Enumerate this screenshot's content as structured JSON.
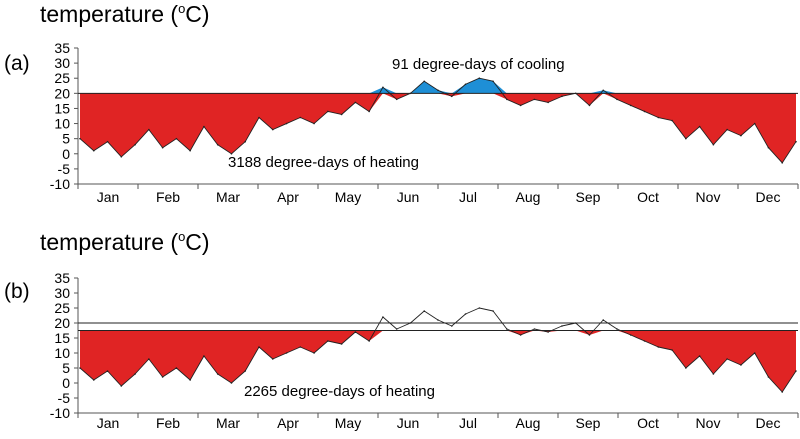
{
  "colors": {
    "heating": "#e02424",
    "cooling": "#1e8fd6",
    "line": "#222222",
    "axis": "#555555"
  },
  "chart_data": [
    {
      "type": "area",
      "panel_label": "(a)",
      "title_main": "temperature (",
      "title_deg": "o",
      "title_unit": "C)",
      "xlabel": "",
      "ylabel": "temperature (°C)",
      "ylim": [
        -10,
        35
      ],
      "yticks": [
        "35",
        "30",
        "25",
        "20",
        "15",
        "10",
        "5",
        "0",
        "-5",
        "-10"
      ],
      "categories": [
        "Jan",
        "Feb",
        "Mar",
        "Apr",
        "May",
        "Jun",
        "Jul",
        "Aug",
        "Sep",
        "Oct",
        "Nov",
        "Dec"
      ],
      "grid": false,
      "heating_base": 20,
      "cooling_base": 20,
      "annotations": [
        "91 degree-days of cooling",
        "3188 degree-days of heating"
      ],
      "series": [
        {
          "x": [
            "Jan 1",
            "Jan 8",
            "Jan 15",
            "Jan 22",
            "Jan 29",
            "Feb 5",
            "Feb 12",
            "Feb 19",
            "Feb 26",
            "Mar 5",
            "Mar 12",
            "Mar 19",
            "Mar 26",
            "Apr 2",
            "Apr 9",
            "Apr 16",
            "Apr 23",
            "Apr 30",
            "May 7",
            "May 14",
            "May 21",
            "May 28",
            "Jun 4",
            "Jun 11",
            "Jun 18",
            "Jun 25",
            "Jul 2",
            "Jul 9",
            "Jul 16",
            "Jul 23",
            "Jul 30",
            "Aug 6",
            "Aug 13",
            "Aug 20",
            "Aug 27",
            "Sep 3",
            "Sep 10",
            "Sep 17",
            "Sep 24",
            "Oct 1",
            "Oct 8",
            "Oct 15",
            "Oct 22",
            "Oct 29",
            "Nov 5",
            "Nov 12",
            "Nov 19",
            "Nov 26",
            "Dec 3",
            "Dec 10",
            "Dec 17",
            "Dec 24",
            "Dec 31"
          ],
          "values": [
            5,
            1,
            4,
            -1,
            3,
            8,
            2,
            5,
            1,
            9,
            3,
            0,
            4,
            12,
            8,
            10,
            12,
            10,
            14,
            13,
            17,
            14,
            22,
            18,
            20,
            24,
            21,
            19,
            23,
            25,
            24,
            18,
            16,
            18,
            17,
            19,
            20,
            16,
            21,
            18,
            16,
            14,
            12,
            11,
            5,
            9,
            3,
            8,
            6,
            10,
            2,
            -3,
            4
          ]
        }
      ]
    },
    {
      "type": "area",
      "panel_label": "(b)",
      "title_main": "temperature (",
      "title_deg": "o",
      "title_unit": "C)",
      "xlabel": "",
      "ylabel": "temperature (°C)",
      "ylim": [
        -10,
        35
      ],
      "yticks": [
        "35",
        "30",
        "25",
        "20",
        "15",
        "10",
        "5",
        "0",
        "-5",
        "-10"
      ],
      "categories": [
        "Jan",
        "Feb",
        "Mar",
        "Apr",
        "May",
        "Jun",
        "Jul",
        "Aug",
        "Sep",
        "Oct",
        "Nov",
        "Dec"
      ],
      "grid": false,
      "heating_base": 17.5,
      "cooling_base": 20,
      "annotations": [
        "2265 degree-days of heating"
      ],
      "series": [
        {
          "x": [
            "Jan 1",
            "Jan 8",
            "Jan 15",
            "Jan 22",
            "Jan 29",
            "Feb 5",
            "Feb 12",
            "Feb 19",
            "Feb 26",
            "Mar 5",
            "Mar 12",
            "Mar 19",
            "Mar 26",
            "Apr 2",
            "Apr 9",
            "Apr 16",
            "Apr 23",
            "Apr 30",
            "May 7",
            "May 14",
            "May 21",
            "May 28",
            "Jun 4",
            "Jun 11",
            "Jun 18",
            "Jun 25",
            "Jul 2",
            "Jul 9",
            "Jul 16",
            "Jul 23",
            "Jul 30",
            "Aug 6",
            "Aug 13",
            "Aug 20",
            "Aug 27",
            "Sep 3",
            "Sep 10",
            "Sep 17",
            "Sep 24",
            "Oct 1",
            "Oct 8",
            "Oct 15",
            "Oct 22",
            "Oct 29",
            "Nov 5",
            "Nov 12",
            "Nov 19",
            "Nov 26",
            "Dec 3",
            "Dec 10",
            "Dec 17",
            "Dec 24",
            "Dec 31"
          ],
          "values": [
            5,
            1,
            4,
            -1,
            3,
            8,
            2,
            5,
            1,
            9,
            3,
            0,
            4,
            12,
            8,
            10,
            12,
            10,
            14,
            13,
            17,
            14,
            22,
            18,
            20,
            24,
            21,
            19,
            23,
            25,
            24,
            18,
            16,
            18,
            17,
            19,
            20,
            16,
            21,
            18,
            16,
            14,
            12,
            11,
            5,
            9,
            3,
            8,
            6,
            10,
            2,
            -3,
            4
          ]
        }
      ]
    }
  ]
}
